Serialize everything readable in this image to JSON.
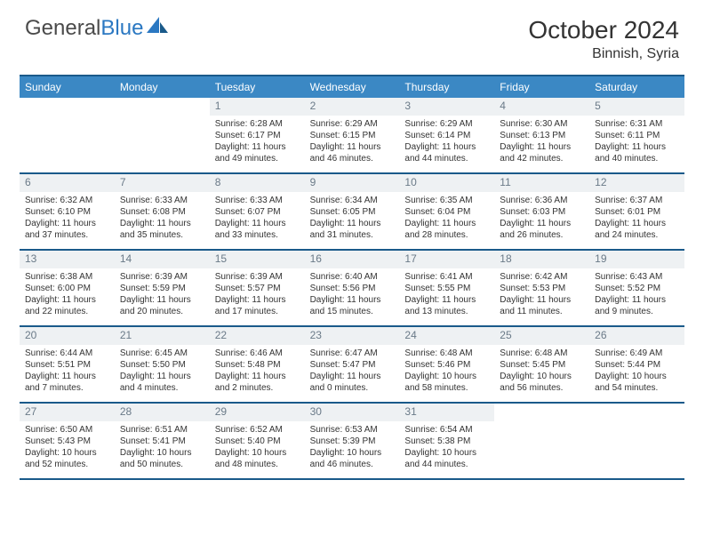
{
  "brand": {
    "part1": "General",
    "part2": "Blue"
  },
  "title": "October 2024",
  "location": "Binnish, Syria",
  "colors": {
    "header_bg": "#3b88c4",
    "header_border": "#1a5a8a",
    "daynum_bg": "#eef1f3",
    "daynum_color": "#6a7a88",
    "text": "#333333"
  },
  "day_names": [
    "Sunday",
    "Monday",
    "Tuesday",
    "Wednesday",
    "Thursday",
    "Friday",
    "Saturday"
  ],
  "weeks": [
    [
      null,
      null,
      {
        "n": "1",
        "sr": "6:28 AM",
        "ss": "6:17 PM",
        "dl": "11 hours and 49 minutes."
      },
      {
        "n": "2",
        "sr": "6:29 AM",
        "ss": "6:15 PM",
        "dl": "11 hours and 46 minutes."
      },
      {
        "n": "3",
        "sr": "6:29 AM",
        "ss": "6:14 PM",
        "dl": "11 hours and 44 minutes."
      },
      {
        "n": "4",
        "sr": "6:30 AM",
        "ss": "6:13 PM",
        "dl": "11 hours and 42 minutes."
      },
      {
        "n": "5",
        "sr": "6:31 AM",
        "ss": "6:11 PM",
        "dl": "11 hours and 40 minutes."
      }
    ],
    [
      {
        "n": "6",
        "sr": "6:32 AM",
        "ss": "6:10 PM",
        "dl": "11 hours and 37 minutes."
      },
      {
        "n": "7",
        "sr": "6:33 AM",
        "ss": "6:08 PM",
        "dl": "11 hours and 35 minutes."
      },
      {
        "n": "8",
        "sr": "6:33 AM",
        "ss": "6:07 PM",
        "dl": "11 hours and 33 minutes."
      },
      {
        "n": "9",
        "sr": "6:34 AM",
        "ss": "6:05 PM",
        "dl": "11 hours and 31 minutes."
      },
      {
        "n": "10",
        "sr": "6:35 AM",
        "ss": "6:04 PM",
        "dl": "11 hours and 28 minutes."
      },
      {
        "n": "11",
        "sr": "6:36 AM",
        "ss": "6:03 PM",
        "dl": "11 hours and 26 minutes."
      },
      {
        "n": "12",
        "sr": "6:37 AM",
        "ss": "6:01 PM",
        "dl": "11 hours and 24 minutes."
      }
    ],
    [
      {
        "n": "13",
        "sr": "6:38 AM",
        "ss": "6:00 PM",
        "dl": "11 hours and 22 minutes."
      },
      {
        "n": "14",
        "sr": "6:39 AM",
        "ss": "5:59 PM",
        "dl": "11 hours and 20 minutes."
      },
      {
        "n": "15",
        "sr": "6:39 AM",
        "ss": "5:57 PM",
        "dl": "11 hours and 17 minutes."
      },
      {
        "n": "16",
        "sr": "6:40 AM",
        "ss": "5:56 PM",
        "dl": "11 hours and 15 minutes."
      },
      {
        "n": "17",
        "sr": "6:41 AM",
        "ss": "5:55 PM",
        "dl": "11 hours and 13 minutes."
      },
      {
        "n": "18",
        "sr": "6:42 AM",
        "ss": "5:53 PM",
        "dl": "11 hours and 11 minutes."
      },
      {
        "n": "19",
        "sr": "6:43 AM",
        "ss": "5:52 PM",
        "dl": "11 hours and 9 minutes."
      }
    ],
    [
      {
        "n": "20",
        "sr": "6:44 AM",
        "ss": "5:51 PM",
        "dl": "11 hours and 7 minutes."
      },
      {
        "n": "21",
        "sr": "6:45 AM",
        "ss": "5:50 PM",
        "dl": "11 hours and 4 minutes."
      },
      {
        "n": "22",
        "sr": "6:46 AM",
        "ss": "5:48 PM",
        "dl": "11 hours and 2 minutes."
      },
      {
        "n": "23",
        "sr": "6:47 AM",
        "ss": "5:47 PM",
        "dl": "11 hours and 0 minutes."
      },
      {
        "n": "24",
        "sr": "6:48 AM",
        "ss": "5:46 PM",
        "dl": "10 hours and 58 minutes."
      },
      {
        "n": "25",
        "sr": "6:48 AM",
        "ss": "5:45 PM",
        "dl": "10 hours and 56 minutes."
      },
      {
        "n": "26",
        "sr": "6:49 AM",
        "ss": "5:44 PM",
        "dl": "10 hours and 54 minutes."
      }
    ],
    [
      {
        "n": "27",
        "sr": "6:50 AM",
        "ss": "5:43 PM",
        "dl": "10 hours and 52 minutes."
      },
      {
        "n": "28",
        "sr": "6:51 AM",
        "ss": "5:41 PM",
        "dl": "10 hours and 50 minutes."
      },
      {
        "n": "29",
        "sr": "6:52 AM",
        "ss": "5:40 PM",
        "dl": "10 hours and 48 minutes."
      },
      {
        "n": "30",
        "sr": "6:53 AM",
        "ss": "5:39 PM",
        "dl": "10 hours and 46 minutes."
      },
      {
        "n": "31",
        "sr": "6:54 AM",
        "ss": "5:38 PM",
        "dl": "10 hours and 44 minutes."
      },
      null,
      null
    ]
  ],
  "labels": {
    "sunrise": "Sunrise:",
    "sunset": "Sunset:",
    "daylight": "Daylight:"
  }
}
